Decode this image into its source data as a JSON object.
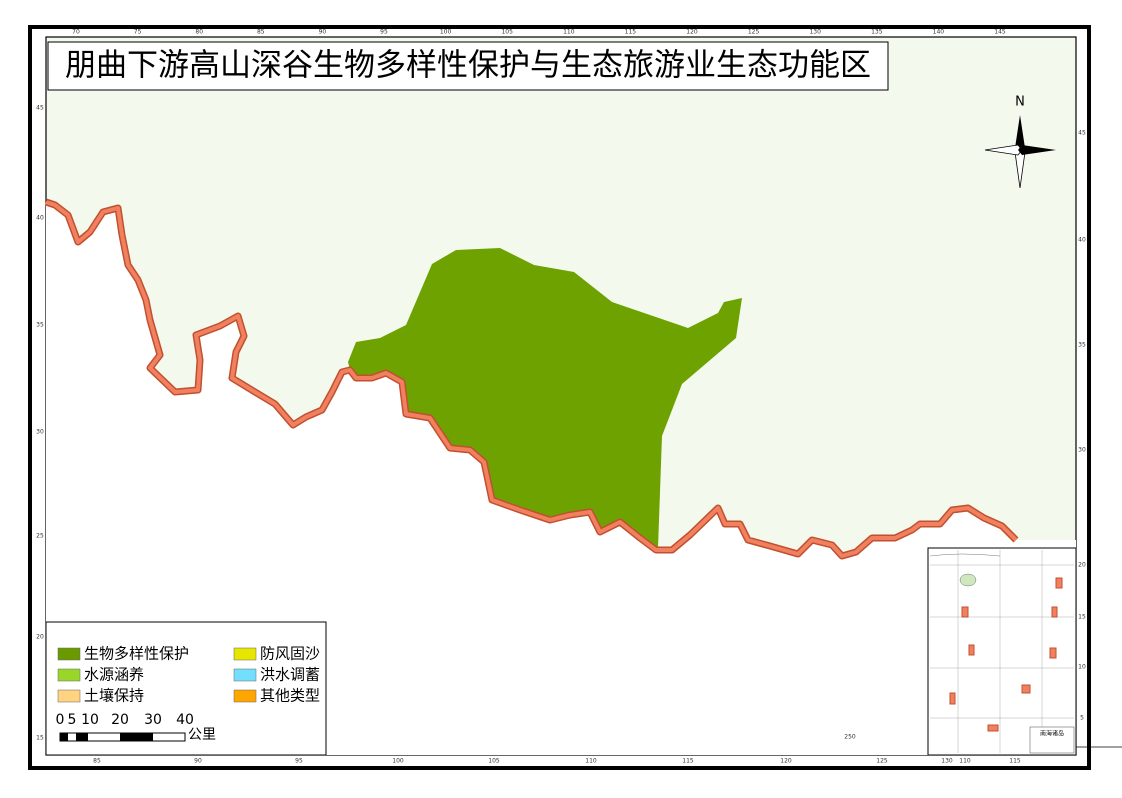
{
  "header": {
    "title": "朋曲下游高山深谷生物多样性保护与生态旅游业生态功能区"
  },
  "north_label": "N",
  "legend": {
    "items": [
      {
        "label": "生物多样性保护",
        "color": "#6a9a00"
      },
      {
        "label": "防风固沙",
        "color": "#e6e600"
      },
      {
        "label": "水源涵养",
        "color": "#98d62a"
      },
      {
        "label": "洪水调蓄",
        "color": "#73dfff"
      },
      {
        "label": "土壤保持",
        "color": "#ffd37f"
      },
      {
        "label": "其他类型",
        "color": "#ffa500"
      }
    ]
  },
  "scale_bar": {
    "labels": [
      "0",
      "5",
      "10",
      "20",
      "30",
      "40"
    ],
    "unit": "公里"
  },
  "grid_labels": {
    "top": [
      "70",
      "75",
      "80",
      "85",
      "90",
      "95",
      "100",
      "105",
      "110",
      "115",
      "120",
      "125",
      "130",
      "135",
      "140",
      "145"
    ],
    "bottom": [
      "85",
      "90",
      "95",
      "100",
      "105",
      "110",
      "115",
      "120",
      "125",
      "130",
      "110",
      "115"
    ],
    "left": [
      "45",
      "40",
      "35",
      "30",
      "25",
      "20",
      "15"
    ],
    "right": [
      "45",
      "40",
      "35",
      "30",
      "20",
      "15",
      "10",
      "5"
    ],
    "other": [
      "250"
    ]
  },
  "inset": {
    "label": "南海诸岛"
  }
}
